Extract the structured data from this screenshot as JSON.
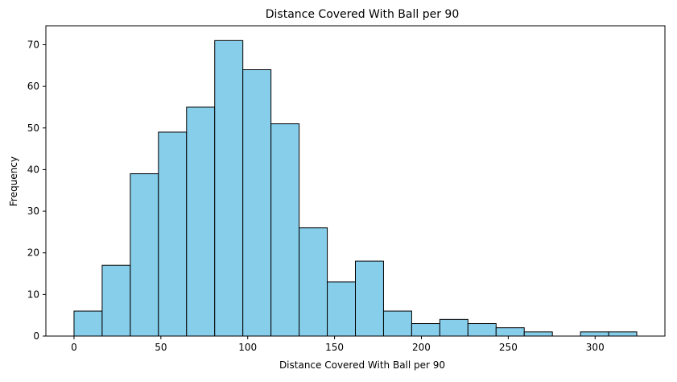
{
  "chart_data": {
    "type": "histogram",
    "title": "Distance Covered With Ball per 90",
    "xlabel": "Distance Covered With Ball per 90",
    "ylabel": "Frequency",
    "bins": [
      {
        "start": 0.0,
        "end": 16.2,
        "count": 6
      },
      {
        "start": 16.2,
        "end": 32.4,
        "count": 17
      },
      {
        "start": 32.4,
        "end": 48.6,
        "count": 39
      },
      {
        "start": 48.6,
        "end": 64.8,
        "count": 49
      },
      {
        "start": 64.8,
        "end": 81.0,
        "count": 55
      },
      {
        "start": 81.0,
        "end": 97.2,
        "count": 71
      },
      {
        "start": 97.2,
        "end": 113.4,
        "count": 64
      },
      {
        "start": 113.4,
        "end": 129.6,
        "count": 51
      },
      {
        "start": 129.6,
        "end": 145.8,
        "count": 26
      },
      {
        "start": 145.8,
        "end": 162.0,
        "count": 13
      },
      {
        "start": 162.0,
        "end": 178.2,
        "count": 18
      },
      {
        "start": 178.2,
        "end": 194.4,
        "count": 6
      },
      {
        "start": 194.4,
        "end": 210.6,
        "count": 3
      },
      {
        "start": 210.6,
        "end": 226.8,
        "count": 4
      },
      {
        "start": 226.8,
        "end": 243.0,
        "count": 3
      },
      {
        "start": 243.0,
        "end": 259.2,
        "count": 2
      },
      {
        "start": 259.2,
        "end": 275.4,
        "count": 1
      },
      {
        "start": 275.4,
        "end": 291.6,
        "count": 0
      },
      {
        "start": 291.6,
        "end": 307.8,
        "count": 1
      },
      {
        "start": 307.8,
        "end": 324.0,
        "count": 1
      }
    ],
    "xlim": [
      -16.2,
      340.2
    ],
    "ylim": [
      0,
      74.55
    ],
    "xticks": [
      0,
      50,
      100,
      150,
      200,
      250,
      300
    ],
    "yticks": [
      0,
      10,
      20,
      30,
      40,
      50,
      60,
      70
    ],
    "grid": false,
    "colors": {
      "bar_fill": "#87ceeb",
      "bar_edge": "#000000"
    }
  }
}
